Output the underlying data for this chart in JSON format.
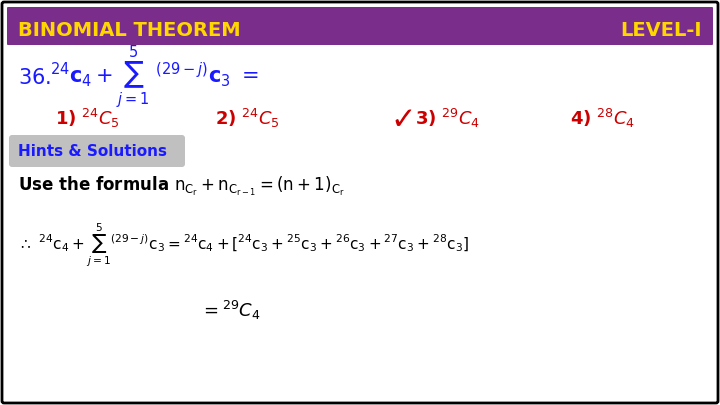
{
  "bg_color": "#ffffff",
  "border_color": "#000000",
  "header_bg": "#7B2D8B",
  "header_text_left": "BINOMIAL THEOREM",
  "header_text_right": "LEVEL-I",
  "header_text_color": "#FFD700",
  "question_color": "#1a1aff",
  "answer_color": "#cc0000",
  "hints_bg": "#c0c0c0",
  "hints_text": "Hints & Solutions",
  "hints_text_color": "#1a1aff",
  "body_text_color": "#000000"
}
